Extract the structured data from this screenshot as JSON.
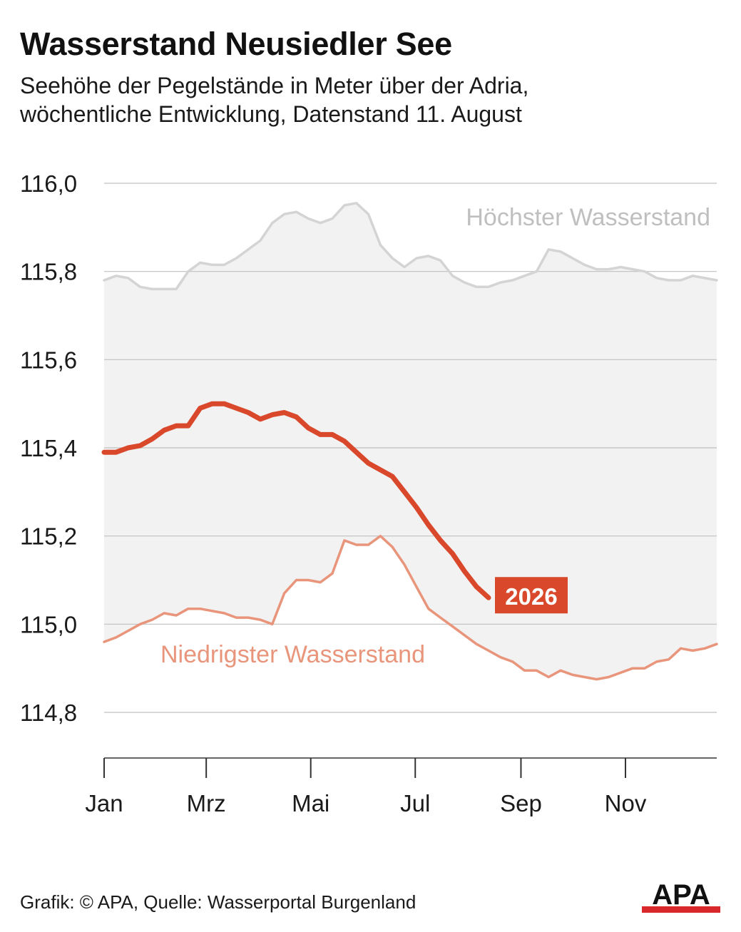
{
  "header": {
    "title": "Wasserstand Neusiedler See",
    "subtitle_line1": "Seehöhe der Pegelstände in Meter über der Adria,",
    "subtitle_line2": "wöchentliche Entwicklung, Datenstand 11. August"
  },
  "footer": {
    "credit": "Grafik: © APA, Quelle: Wasserportal Burgenland",
    "logo_text": "APA"
  },
  "chart_data": {
    "type": "line",
    "title": "Wasserstand Neusiedler See",
    "ylim": [
      114.7,
      116.0
    ],
    "y_ticks": [
      116.0,
      115.8,
      115.6,
      115.4,
      115.2,
      115.0,
      114.8
    ],
    "y_tick_labels": [
      "116,0",
      "115,8",
      "115,6",
      "115,4",
      "115,2",
      "115,0",
      "114,8"
    ],
    "x_axis": {
      "unit": "week",
      "range": [
        1,
        52
      ],
      "ticks": [
        1,
        9.5,
        18.2,
        26.9,
        35.7,
        44.4
      ],
      "tick_labels": [
        "Jan",
        "Mrz",
        "Mai",
        "Jul",
        "Sep",
        "Nov"
      ]
    },
    "grid": true,
    "area_between_max_min": true,
    "colors": {
      "max": "#d4d4d4",
      "min": "#e8957b",
      "current": "#d9482b",
      "fill": "#f2f2f2",
      "grid": "#c0c0c0",
      "axis": "#333333"
    },
    "series": [
      {
        "name": "Höchster Wasserstand",
        "x": [
          1,
          2,
          3,
          4,
          5,
          6,
          7,
          8,
          9,
          10,
          11,
          12,
          13,
          14,
          15,
          16,
          17,
          18,
          19,
          20,
          21,
          22,
          23,
          24,
          25,
          26,
          27,
          28,
          29,
          30,
          31,
          32,
          33,
          34,
          35,
          36,
          37,
          38,
          39,
          40,
          41,
          42,
          43,
          44,
          45,
          46,
          47,
          48,
          49,
          50,
          51,
          52
        ],
        "values": [
          115.78,
          115.79,
          115.785,
          115.765,
          115.76,
          115.76,
          115.76,
          115.8,
          115.82,
          115.815,
          115.815,
          115.83,
          115.85,
          115.87,
          115.91,
          115.93,
          115.935,
          115.92,
          115.91,
          115.92,
          115.95,
          115.955,
          115.93,
          115.86,
          115.83,
          115.81,
          115.83,
          115.835,
          115.825,
          115.79,
          115.775,
          115.765,
          115.765,
          115.775,
          115.78,
          115.79,
          115.8,
          115.85,
          115.845,
          115.83,
          115.815,
          115.805,
          115.805,
          115.81,
          115.805,
          115.8,
          115.785,
          115.78,
          115.78,
          115.79,
          115.785,
          115.78
        ]
      },
      {
        "name": "Niedrigster Wasserstand",
        "x": [
          1,
          2,
          3,
          4,
          5,
          6,
          7,
          8,
          9,
          10,
          11,
          12,
          13,
          14,
          15,
          16,
          17,
          18,
          19,
          20,
          21,
          22,
          23,
          24,
          25,
          26,
          27,
          28,
          29,
          30,
          31,
          32,
          33,
          34,
          35,
          36,
          37,
          38,
          39,
          40,
          41,
          42,
          43,
          44,
          45,
          46,
          47,
          48,
          49,
          50,
          51,
          52
        ],
        "values": [
          114.96,
          114.97,
          114.985,
          115.0,
          115.01,
          115.025,
          115.02,
          115.035,
          115.035,
          115.03,
          115.025,
          115.015,
          115.015,
          115.01,
          115.0,
          115.07,
          115.1,
          115.1,
          115.095,
          115.115,
          115.19,
          115.18,
          115.18,
          115.2,
          115.175,
          115.135,
          115.085,
          115.035,
          115.015,
          114.995,
          114.975,
          114.955,
          114.94,
          114.925,
          114.915,
          114.895,
          114.895,
          114.88,
          114.895,
          114.885,
          114.88,
          114.875,
          114.88,
          114.89,
          114.9,
          114.9,
          114.915,
          114.92,
          114.945,
          114.94,
          114.945,
          114.955
        ]
      },
      {
        "name": "2026",
        "x": [
          1,
          2,
          3,
          4,
          5,
          6,
          7,
          8,
          9,
          10,
          11,
          12,
          13,
          14,
          15,
          16,
          17,
          18,
          19,
          20,
          21,
          22,
          23,
          24,
          25,
          26,
          27,
          28,
          29,
          30,
          31,
          32,
          33
        ],
        "values": [
          115.39,
          115.39,
          115.4,
          115.405,
          115.42,
          115.44,
          115.45,
          115.45,
          115.49,
          115.5,
          115.5,
          115.49,
          115.48,
          115.465,
          115.475,
          115.48,
          115.47,
          115.445,
          115.43,
          115.43,
          115.415,
          115.39,
          115.365,
          115.35,
          115.335,
          115.3,
          115.265,
          115.225,
          115.19,
          115.16,
          115.12,
          115.085,
          115.06
        ]
      }
    ]
  }
}
